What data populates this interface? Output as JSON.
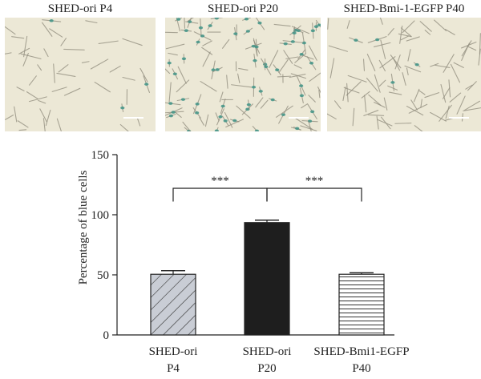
{
  "figure": {
    "panels": [
      {
        "label": "SHED-ori P4",
        "density": 46,
        "blue_fraction": 0.05
      },
      {
        "label": "SHED-ori P20",
        "density": 120,
        "blue_fraction": 0.45
      },
      {
        "label": "SHED-Bmi-1-EGFP P40",
        "density": 90,
        "blue_fraction": 0.04
      }
    ],
    "colors": {
      "background_tint": "#ece8d6",
      "cell_gray": "#8f8b7c",
      "blue_stain": "#3f9386",
      "bar_dark": "#1e1e1e",
      "bar_light": "#c9cdd5"
    }
  },
  "chart_data": {
    "type": "bar",
    "ylabel": "Percentage of blue cells",
    "ylim": [
      0,
      150
    ],
    "yticks": [
      0,
      50,
      100,
      150
    ],
    "categories": [
      {
        "line1": "SHED-ori",
        "line2": "P4"
      },
      {
        "line1": "SHED-ori",
        "line2": "P20"
      },
      {
        "line1": "SHED-Bmi1-EGFP",
        "line2": "P40"
      }
    ],
    "values": [
      50.5,
      93.5,
      50.5
    ],
    "errors": [
      3,
      2,
      1.2
    ],
    "patterns": [
      "diagonal",
      "solid",
      "horizontal"
    ],
    "significance": [
      {
        "from": 0,
        "to": 1,
        "label": "***"
      },
      {
        "from": 1,
        "to": 2,
        "label": "***"
      }
    ]
  }
}
